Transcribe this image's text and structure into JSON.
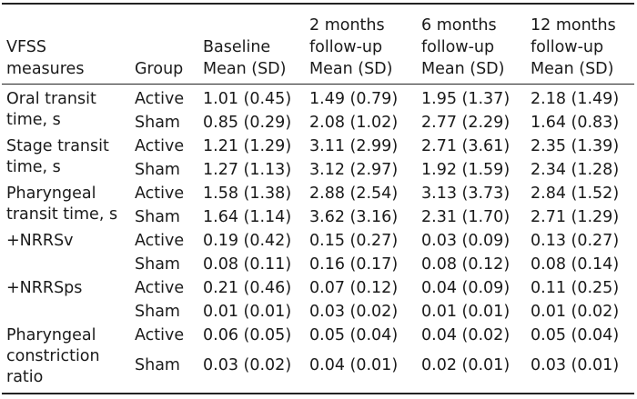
{
  "table": {
    "headers": {
      "measures": [
        "VFSS",
        "measures"
      ],
      "group": [
        "Group"
      ],
      "baseline": [
        "Baseline",
        "Mean (SD)"
      ],
      "m2": [
        "2 months",
        "follow-up",
        "Mean (SD)"
      ],
      "m6": [
        "6 months",
        "follow-up",
        "Mean (SD)"
      ],
      "m12": [
        "12 months",
        "follow-up",
        "Mean (SD)"
      ]
    },
    "rows": [
      {
        "measure": "Oral transit\ntime, s",
        "group": "Active",
        "baseline": "1.01 (0.45)",
        "m2": "1.49 (0.79)",
        "m6": "1.95 (1.37)",
        "m12": "2.18 (1.49)"
      },
      {
        "measure": "",
        "group": "Sham",
        "baseline": "0.85 (0.29)",
        "m2": "2.08 (1.02)",
        "m6": "2.77 (2.29)",
        "m12": "1.64 (0.83)"
      },
      {
        "measure": "Stage transit\ntime, s",
        "group": "Active",
        "baseline": "1.21 (1.29)",
        "m2": "3.11 (2.99)",
        "m6": "2.71 (3.61)",
        "m12": "2.35 (1.39)"
      },
      {
        "measure": "",
        "group": "Sham",
        "baseline": "1.27 (1.13)",
        "m2": "3.12 (2.97)",
        "m6": "1.92 (1.59)",
        "m12": "2.34 (1.28)"
      },
      {
        "measure": "Pharyngeal\ntransit time, s",
        "group": "Active",
        "baseline": "1.58 (1.38)",
        "m2": "2.88 (2.54)",
        "m6": "3.13 (3.73)",
        "m12": "2.84 (1.52)"
      },
      {
        "measure": "",
        "group": "Sham",
        "baseline": "1.64 (1.14)",
        "m2": "3.62 (3.16)",
        "m6": "2.31 (1.70)",
        "m12": "2.71 (1.29)"
      },
      {
        "measure": "+NRRSv",
        "group": "Active",
        "baseline": "0.19 (0.42)",
        "m2": "0.15 (0.27)",
        "m6": "0.03 (0.09)",
        "m12": "0.13 (0.27)"
      },
      {
        "measure": "",
        "group": "Sham",
        "baseline": "0.08 (0.11)",
        "m2": "0.16 (0.17)",
        "m6": "0.08 (0.12)",
        "m12": "0.08 (0.14)"
      },
      {
        "measure": "+NRRSps",
        "group": "Active",
        "baseline": "0.21 (0.46)",
        "m2": "0.07 (0.12)",
        "m6": "0.04 (0.09)",
        "m12": "0.11 (0.25)"
      },
      {
        "measure": "",
        "group": "Sham",
        "baseline": "0.01 (0.01)",
        "m2": "0.03 (0.02)",
        "m6": "0.01 (0.01)",
        "m12": "0.01 (0.02)"
      },
      {
        "measure": "Pharyngeal\nconstriction\nratio",
        "group": "Active",
        "baseline": "0.06 (0.05)",
        "m2": "0.05 (0.04)",
        "m6": "0.04 (0.02)",
        "m12": "0.05 (0.04)"
      },
      {
        "measure": "",
        "group": "Sham",
        "baseline": "0.03 (0.02)",
        "m2": "0.04 (0.01)",
        "m6": "0.02 (0.01)",
        "m12": "0.03 (0.01)"
      }
    ]
  }
}
